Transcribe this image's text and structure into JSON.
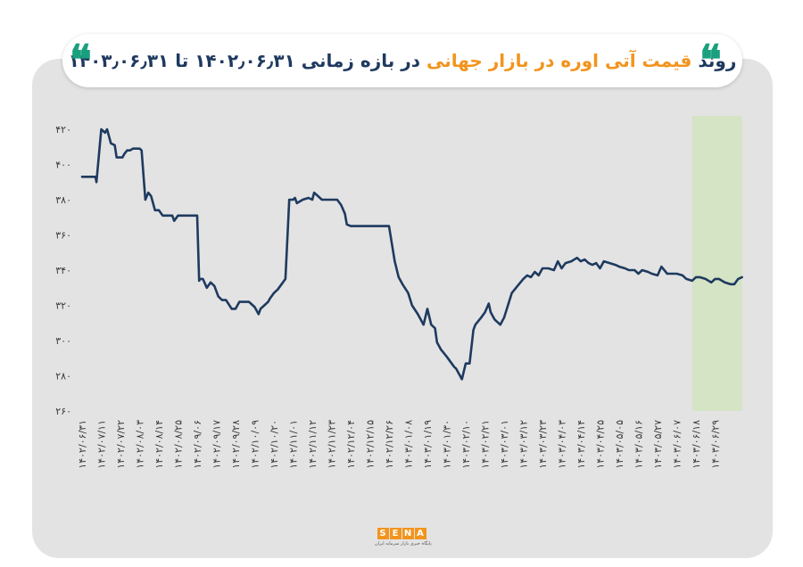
{
  "header": {
    "title_part1": "روند",
    "title_part2": "قیمت آتی اوره در بازار جهانی",
    "title_part3": "در بازه زمانی ۱۴۰۲٫۰۶٫۳۱ تا ۱۴۰۳٫۰۶٫۳۱",
    "quote_glyph": "❝"
  },
  "colors": {
    "line": "#1e3a5f",
    "accent": "#f2941d",
    "quote": "#1aa07f",
    "highlight": "#d4e4c4",
    "card_bg": "#e3e3e3"
  },
  "logo": {
    "letters": [
      "S",
      "E",
      "N",
      "A"
    ],
    "subtitle": "پایگاه خبری بازار سرمایه ایران"
  },
  "chart_data": {
    "type": "line",
    "title": "",
    "xlabel": "",
    "ylabel": "",
    "ylim": [
      260,
      420
    ],
    "yticks": [
      {
        "value": 420,
        "label": "۴۲۰"
      },
      {
        "value": 400,
        "label": "۴۰۰"
      },
      {
        "value": 380,
        "label": "۳۸۰"
      },
      {
        "value": 360,
        "label": "۳۶۰"
      },
      {
        "value": 340,
        "label": "۳۴۰"
      },
      {
        "value": 320,
        "label": "۳۲۰"
      },
      {
        "value": 300,
        "label": "۳۰۰"
      },
      {
        "value": 280,
        "label": "۲۸۰"
      },
      {
        "value": 260,
        "label": "۲۶۰"
      }
    ],
    "xtick_labels": [
      "۱۴۰۲/۰۶/۳۱",
      "۱۴۰۲/۰۷/۱۱",
      "۱۴۰۲/۰۷/۲۲",
      "۱۴۰۲/۰۸/۰۳",
      "۱۴۰۲/۰۸/۱۴",
      "۱۴۰۲/۰۸/۲۵",
      "۱۴۰۲/۰۹/۰۶",
      "۱۴۰۲/۰۹/۱۷",
      "۱۴۰۲/۰۹/۲۸",
      "۱۴۰۲/۱۰/۰۹",
      "۱۴۰۲/۱۰/۲۰",
      "۱۴۰۲/۱۱/۰۱",
      "۱۴۰۲/۱۱/۱۲",
      "۱۴۰۲/۱۱/۲۳",
      "۱۴۰۲/۱۲/۰۴",
      "۱۴۰۲/۱۲/۱۵",
      "۱۴۰۲/۱۲/۲۶",
      "۱۴۰۳/۰۱/۰۸",
      "۱۴۰۳/۰۱/۱۹",
      "۱۴۰۳/۰۱/۳۰",
      "۱۴۰۳/۰۲/۱۰",
      "۱۴۰۳/۰۲/۲۱",
      "۱۴۰۳/۰۳/۰۱",
      "۱۴۰۳/۰۳/۱۲",
      "۱۴۰۳/۰۳/۲۳",
      "۱۴۰۳/۰۴/۰۳",
      "۱۴۰۳/۰۴/۱۴",
      "۱۴۰۳/۰۴/۲۵",
      "۱۴۰۳/۰۵/۰۵",
      "۱۴۰۳/۰۵/۱۶",
      "۱۴۰۳/۰۵/۲۷",
      "۱۴۰۳/۰۶/۰۷",
      "۱۴۰۳/۰۶/۱۸",
      "۱۴۰۳/۰۶/۲۹"
    ],
    "highlight_range_index": [
      31.8,
      34.4
    ],
    "x_max_index": 34.4,
    "series": [
      {
        "x": [
          0,
          0.7,
          0.75,
          1.0,
          1.2,
          1.3,
          1.5,
          1.7,
          1.8,
          2.1,
          2.2,
          2.35,
          2.5,
          2.65,
          2.8,
          3.0,
          3.1,
          3.3,
          3.45,
          3.6,
          3.8,
          4.0,
          4.2,
          4.5,
          4.7,
          4.8,
          5.0,
          5.3,
          5.5,
          6.0,
          6.1,
          6.15,
          6.3,
          6.5,
          6.7,
          6.9,
          7.1,
          7.3,
          7.5,
          7.8,
          8.0,
          8.2,
          8.5,
          8.7,
          8.8,
          9.0,
          9.2,
          9.3,
          9.5,
          9.7,
          9.8,
          10.0,
          10.2,
          10.4,
          10.6,
          10.8,
          11.0,
          11.1,
          11.2,
          11.5,
          11.8,
          12.0,
          12.1,
          12.5,
          12.8,
          13.0,
          13.3,
          13.5,
          13.7,
          13.8,
          14.0,
          14.3,
          14.5,
          14.8,
          15.0,
          15.3,
          15.5,
          15.7,
          16.0,
          16.3,
          16.5,
          16.7,
          17.0,
          17.2,
          17.5,
          17.8,
          18.0,
          18.2,
          18.4,
          18.5,
          18.7,
          19.0,
          19.2,
          19.4,
          19.5,
          19.8,
          20.0,
          20.2,
          20.4,
          20.5,
          20.8,
          21.0,
          21.2,
          21.3,
          21.5,
          21.8,
          22.0,
          22.2,
          22.4,
          22.7,
          23.0,
          23.2,
          23.4,
          23.6,
          23.8,
          24.0,
          24.3,
          24.6,
          24.8,
          25.0,
          25.2,
          25.5,
          25.8,
          26.0,
          26.2,
          26.4,
          26.6,
          26.8,
          27.0,
          27.2,
          27.5,
          27.8,
          28.0,
          28.3,
          28.5,
          28.8,
          29.0,
          29.2,
          29.5,
          29.7,
          30.0,
          30.2,
          30.5,
          30.7,
          31.0,
          31.3,
          31.5,
          31.8,
          32.0,
          32.2,
          32.5,
          32.8,
          33.0,
          33.2,
          33.5,
          33.8,
          34.0,
          34.2,
          34.4
        ],
        "y": [
          393,
          393,
          390,
          420,
          418,
          420,
          412,
          411,
          404,
          404,
          406,
          408,
          408,
          409,
          409,
          409,
          408,
          380,
          384,
          382,
          374,
          374,
          371,
          371,
          371,
          368,
          371,
          371,
          371,
          371,
          334,
          335,
          335,
          330,
          333,
          331,
          325,
          323,
          323,
          318,
          318,
          322,
          322,
          322,
          321,
          319,
          315,
          318,
          320,
          322,
          324,
          327,
          329,
          332,
          335,
          380,
          380,
          381,
          378,
          380,
          381,
          380,
          384,
          380,
          380,
          380,
          380,
          377,
          372,
          366,
          365,
          365,
          365,
          365,
          365,
          365,
          365,
          365,
          365,
          345,
          336,
          332,
          327,
          320,
          315,
          309,
          318,
          309,
          307,
          299,
          295,
          291,
          288,
          285,
          284,
          278,
          287,
          287,
          306,
          309,
          313,
          316,
          321,
          316,
          312,
          309,
          313,
          320,
          327,
          331,
          335,
          337,
          336,
          339,
          337,
          341,
          341,
          340,
          345,
          341,
          344,
          345,
          347,
          345,
          346,
          344,
          343,
          344,
          341,
          345,
          344,
          343,
          342,
          341,
          340,
          340,
          338,
          340,
          339,
          338,
          337,
          342,
          338,
          338,
          338,
          337,
          335,
          334,
          336,
          336,
          335,
          333,
          335,
          335,
          333,
          332,
          332,
          335,
          336
        ]
      }
    ]
  }
}
